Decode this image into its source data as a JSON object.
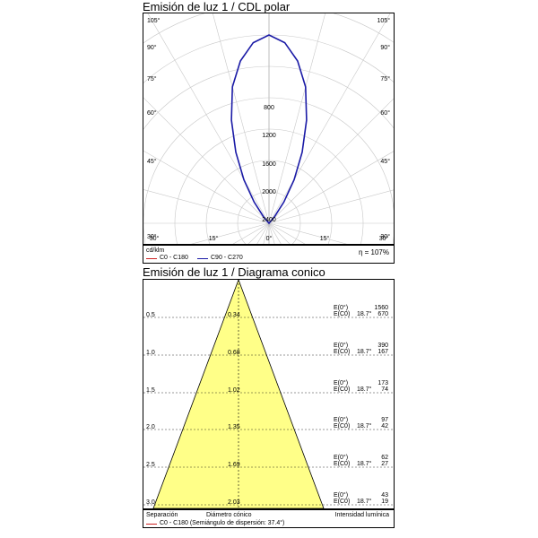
{
  "polar": {
    "title": "Emisión de luz 1 / CDL polar",
    "unit": "cd/klm",
    "efficiency": "η = 107%",
    "legend": [
      {
        "label": "C0 - C180",
        "color": "#cc2222"
      },
      {
        "label": "C90 - C270",
        "color": "#1a1aa6"
      }
    ],
    "angle_labels_left": [
      "105°",
      "90°",
      "75°",
      "60°",
      "45°",
      "30°"
    ],
    "angle_labels_right": [
      "105°",
      "90°",
      "75°",
      "60°",
      "45°",
      "30°"
    ],
    "bottom_labels": [
      "30°",
      "15°",
      "0°",
      "15°",
      "30°"
    ],
    "radial_labels": [
      "800",
      "1200",
      "1600",
      "2000",
      "2400"
    ]
  },
  "cone": {
    "title": "Emisión de luz 1 / Diagrama conico",
    "footer_left": "Separación",
    "footer_center": "Diámetro cónico",
    "footer_right": "Intensidad lumínica",
    "legend": "C0 - C180 (Semiángulo de dispersión: 37.4°)",
    "legend_color": "#cc2222",
    "fill_color": "#ffff88",
    "rows": [
      {
        "distance": "0.5",
        "diameter": "0.34",
        "e0_label": "E(0°)",
        "ec0_label": "E(C0)",
        "angle": "18.7°",
        "e0": "1560",
        "ec0": "670"
      },
      {
        "distance": "1.0",
        "diameter": "0.68",
        "e0_label": "E(0°)",
        "ec0_label": "E(C0)",
        "angle": "18.7°",
        "e0": "390",
        "ec0": "167"
      },
      {
        "distance": "1.5",
        "diameter": "1.02",
        "e0_label": "E(0°)",
        "ec0_label": "E(C0)",
        "angle": "18.7°",
        "e0": "173",
        "ec0": "74"
      },
      {
        "distance": "2.0",
        "diameter": "1.35",
        "e0_label": "E(0°)",
        "ec0_label": "E(C0)",
        "angle": "18.7°",
        "e0": "97",
        "ec0": "42"
      },
      {
        "distance": "2.5",
        "diameter": "1.69",
        "e0_label": "E(0°)",
        "ec0_label": "E(C0)",
        "angle": "18.7°",
        "e0": "62",
        "ec0": "27"
      },
      {
        "distance": "3.0",
        "diameter": "2.03",
        "e0_label": "E(0°)",
        "ec0_label": "E(C0)",
        "angle": "18.7°",
        "e0": "43",
        "ec0": "19"
      }
    ]
  },
  "chart_data": [
    {
      "type": "polar",
      "title": "Emisión de luz 1 / CDL polar",
      "unit": "cd/klm",
      "radial_max": 2400,
      "radial_ticks": [
        800,
        1200,
        1600,
        2000,
        2400
      ],
      "series": [
        {
          "name": "C90 - C270",
          "color": "#1a1aa6",
          "angles_deg": [
            0,
            5,
            10,
            15,
            20,
            25,
            30,
            35,
            40,
            45
          ],
          "values": [
            2400,
            2310,
            2100,
            1800,
            1400,
            1000,
            640,
            330,
            110,
            0
          ]
        }
      ]
    },
    {
      "type": "table",
      "title": "Emisión de luz 1 / Diagrama conico",
      "half_angle_deg": 18.7,
      "columns": [
        "Separación",
        "Diámetro cónico",
        "E(0°)",
        "E(C0)"
      ],
      "rows": [
        [
          0.5,
          0.34,
          1560,
          670
        ],
        [
          1.0,
          0.68,
          390,
          167
        ],
        [
          1.5,
          1.02,
          173,
          74
        ],
        [
          2.0,
          1.35,
          97,
          42
        ],
        [
          2.5,
          1.69,
          62,
          27
        ],
        [
          3.0,
          2.03,
          43,
          19
        ]
      ]
    }
  ]
}
